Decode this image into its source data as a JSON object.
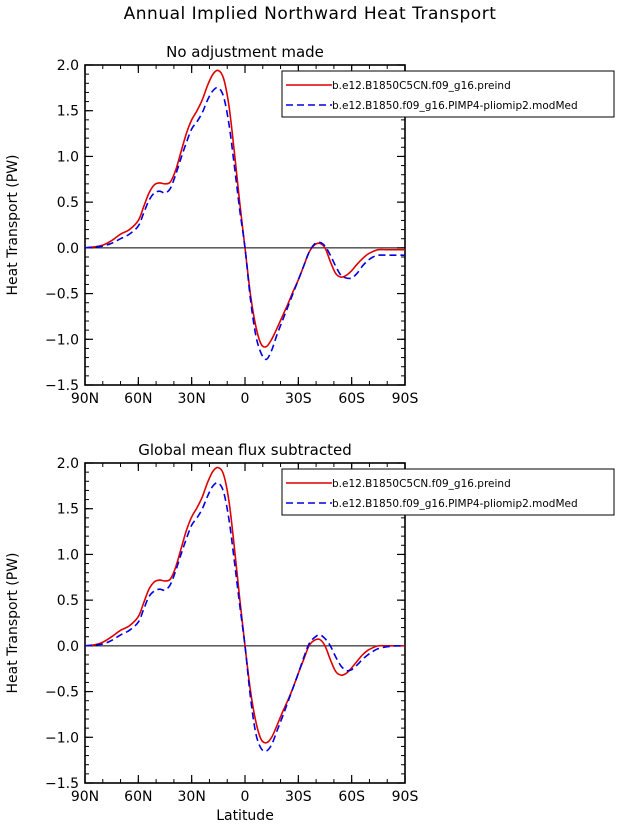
{
  "main_title": "Annual Implied Northward Heat Transport",
  "chart_data": [
    {
      "type": "line",
      "title": "No adjustment made",
      "xlabel": "",
      "ylabel": "Heat Transport (PW)",
      "xlim": [
        -90,
        90
      ],
      "ylim": [
        -1.5,
        2.0
      ],
      "x_ticks": [
        -90,
        -60,
        -30,
        0,
        30,
        60,
        90
      ],
      "x_tick_labels": [
        "90N",
        "60N",
        "30N",
        "0",
        "30S",
        "60S",
        "90S"
      ],
      "y_ticks": [
        -1.5,
        -1.0,
        -0.5,
        0.0,
        0.5,
        1.0,
        1.5,
        2.0
      ],
      "y_tick_labels": [
        "−1.5",
        "−1.0",
        "−0.5",
        "0.0",
        "0.5",
        "1.0",
        "1.5",
        "2.0"
      ],
      "zero_line": true,
      "legend_position": "top-right",
      "series": [
        {
          "name": "b.e12.B1850C5CN.f09_g16.preind",
          "color": "#e00000",
          "dash": "solid",
          "x": [
            -90,
            -85,
            -80,
            -75,
            -70,
            -65,
            -60,
            -57,
            -54,
            -51,
            -48,
            -45,
            -42,
            -39,
            -36,
            -33,
            -30,
            -27,
            -24,
            -21,
            -18,
            -15,
            -12,
            -9,
            -6,
            -3,
            0,
            3,
            6,
            9,
            12,
            15,
            18,
            21,
            24,
            27,
            30,
            33,
            36,
            39,
            42,
            45,
            48,
            51,
            54,
            57,
            60,
            63,
            66,
            69,
            72,
            75,
            80,
            85,
            90
          ],
          "y": [
            0,
            0.01,
            0.03,
            0.08,
            0.15,
            0.2,
            0.3,
            0.45,
            0.6,
            0.69,
            0.71,
            0.7,
            0.72,
            0.85,
            1.05,
            1.25,
            1.4,
            1.5,
            1.62,
            1.78,
            1.9,
            1.94,
            1.85,
            1.55,
            1.05,
            0.5,
            0.0,
            -0.5,
            -0.85,
            -1.05,
            -1.08,
            -1.0,
            -0.88,
            -0.75,
            -0.62,
            -0.48,
            -0.35,
            -0.2,
            -0.05,
            0.03,
            0.05,
            0.0,
            -0.15,
            -0.28,
            -0.32,
            -0.3,
            -0.25,
            -0.18,
            -0.12,
            -0.07,
            -0.04,
            -0.02,
            -0.02,
            -0.02,
            -0.02
          ]
        },
        {
          "name": "b.e12.B1850.f09_g16.PIMP4-pliomip2.modMed",
          "color": "#0000e0",
          "dash": "dashed",
          "x": [
            -90,
            -85,
            -80,
            -75,
            -70,
            -65,
            -60,
            -57,
            -54,
            -51,
            -48,
            -45,
            -42,
            -39,
            -36,
            -33,
            -30,
            -27,
            -24,
            -21,
            -18,
            -15,
            -12,
            -9,
            -6,
            -3,
            0,
            3,
            6,
            9,
            12,
            15,
            18,
            21,
            24,
            27,
            30,
            33,
            36,
            39,
            42,
            45,
            48,
            51,
            54,
            57,
            60,
            63,
            66,
            69,
            72,
            75,
            80,
            85,
            90
          ],
          "y": [
            0,
            0.01,
            0.02,
            0.05,
            0.1,
            0.15,
            0.24,
            0.38,
            0.52,
            0.6,
            0.62,
            0.6,
            0.65,
            0.8,
            0.98,
            1.15,
            1.3,
            1.38,
            1.48,
            1.62,
            1.72,
            1.75,
            1.65,
            1.35,
            0.9,
            0.42,
            0.0,
            -0.55,
            -0.95,
            -1.15,
            -1.22,
            -1.12,
            -0.95,
            -0.8,
            -0.65,
            -0.5,
            -0.35,
            -0.2,
            -0.05,
            0.04,
            0.06,
            0.02,
            -0.08,
            -0.2,
            -0.3,
            -0.33,
            -0.33,
            -0.28,
            -0.2,
            -0.14,
            -0.1,
            -0.08,
            -0.08,
            -0.08,
            -0.08
          ]
        }
      ]
    },
    {
      "type": "line",
      "title": "Global mean flux subtracted",
      "xlabel": "Latitude",
      "ylabel": "Heat Transport (PW)",
      "xlim": [
        -90,
        90
      ],
      "ylim": [
        -1.5,
        2.0
      ],
      "x_ticks": [
        -90,
        -60,
        -30,
        0,
        30,
        60,
        90
      ],
      "x_tick_labels": [
        "90N",
        "60N",
        "30N",
        "0",
        "30S",
        "60S",
        "90S"
      ],
      "y_ticks": [
        -1.5,
        -1.0,
        -0.5,
        0.0,
        0.5,
        1.0,
        1.5,
        2.0
      ],
      "y_tick_labels": [
        "−1.5",
        "−1.0",
        "−0.5",
        "0.0",
        "0.5",
        "1.0",
        "1.5",
        "2.0"
      ],
      "zero_line": true,
      "legend_position": "top-right",
      "series": [
        {
          "name": "b.e12.B1850C5CN.f09_g16.preind",
          "color": "#e00000",
          "dash": "solid",
          "x": [
            -90,
            -85,
            -80,
            -75,
            -70,
            -65,
            -60,
            -57,
            -54,
            -51,
            -48,
            -45,
            -42,
            -39,
            -36,
            -33,
            -30,
            -27,
            -24,
            -21,
            -18,
            -15,
            -12,
            -9,
            -6,
            -3,
            0,
            3,
            6,
            9,
            12,
            15,
            18,
            21,
            24,
            27,
            30,
            33,
            36,
            39,
            42,
            45,
            48,
            51,
            54,
            57,
            60,
            63,
            66,
            69,
            72,
            75,
            80,
            85,
            90
          ],
          "y": [
            0,
            0.01,
            0.04,
            0.1,
            0.17,
            0.22,
            0.32,
            0.47,
            0.62,
            0.7,
            0.72,
            0.71,
            0.73,
            0.86,
            1.06,
            1.26,
            1.41,
            1.51,
            1.63,
            1.79,
            1.91,
            1.95,
            1.87,
            1.58,
            1.08,
            0.52,
            0.0,
            -0.48,
            -0.82,
            -1.02,
            -1.06,
            -1.0,
            -0.87,
            -0.73,
            -0.6,
            -0.46,
            -0.3,
            -0.15,
            0.0,
            0.06,
            0.07,
            0.0,
            -0.15,
            -0.28,
            -0.32,
            -0.3,
            -0.24,
            -0.17,
            -0.1,
            -0.05,
            -0.02,
            0.0,
            0.0,
            0.0,
            0.0
          ]
        },
        {
          "name": "b.e12.B1850.f09_g16.PIMP4-pliomip2.modMed",
          "color": "#0000e0",
          "dash": "dashed",
          "x": [
            -90,
            -85,
            -80,
            -75,
            -70,
            -65,
            -60,
            -57,
            -54,
            -51,
            -48,
            -45,
            -42,
            -39,
            -36,
            -33,
            -30,
            -27,
            -24,
            -21,
            -18,
            -15,
            -12,
            -9,
            -6,
            -3,
            0,
            3,
            6,
            9,
            12,
            15,
            18,
            21,
            24,
            27,
            30,
            33,
            36,
            39,
            42,
            45,
            48,
            51,
            54,
            57,
            60,
            63,
            66,
            69,
            72,
            75,
            80,
            85,
            90
          ],
          "y": [
            0,
            0.01,
            0.02,
            0.06,
            0.12,
            0.17,
            0.26,
            0.4,
            0.54,
            0.6,
            0.62,
            0.61,
            0.67,
            0.82,
            1.0,
            1.17,
            1.32,
            1.4,
            1.5,
            1.64,
            1.75,
            1.78,
            1.68,
            1.38,
            0.93,
            0.45,
            0.0,
            -0.55,
            -0.95,
            -1.12,
            -1.15,
            -1.08,
            -0.93,
            -0.78,
            -0.62,
            -0.46,
            -0.3,
            -0.13,
            0.02,
            0.09,
            0.12,
            0.08,
            0.0,
            -0.12,
            -0.22,
            -0.27,
            -0.26,
            -0.21,
            -0.15,
            -0.1,
            -0.06,
            -0.03,
            -0.01,
            0.0,
            0.0
          ]
        }
      ]
    }
  ]
}
